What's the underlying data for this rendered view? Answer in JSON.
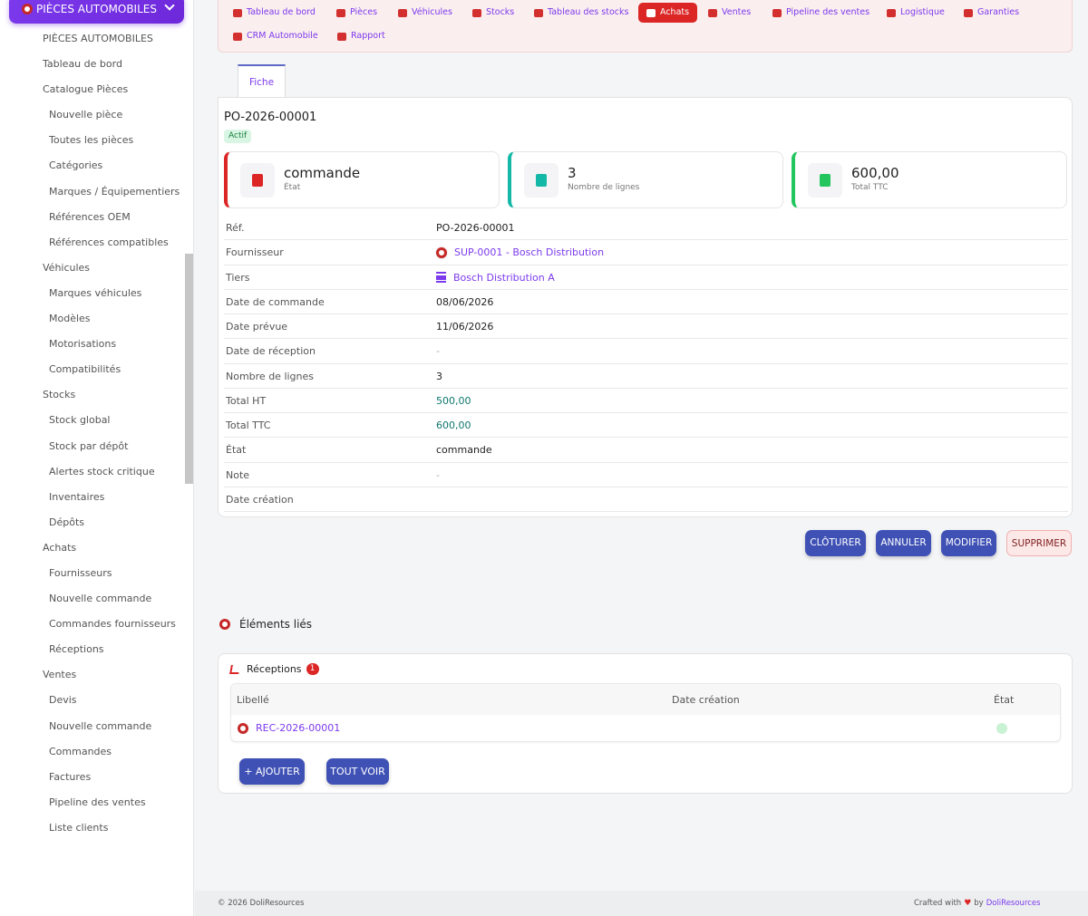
{
  "sidebar": {
    "brand": "PIÈCES AUTOMOBILES",
    "items": [
      {
        "label": "PIÈCES AUTOMOBILES",
        "level": 1
      },
      {
        "label": "Tableau de bord",
        "level": 1
      },
      {
        "label": "Catalogue Pièces",
        "level": 1
      },
      {
        "label": "Nouvelle pièce",
        "level": 2
      },
      {
        "label": "Toutes les pièces",
        "level": 2
      },
      {
        "label": "Catégories",
        "level": 2
      },
      {
        "label": "Marques / Équipementiers",
        "level": 2
      },
      {
        "label": "Références OEM",
        "level": 2
      },
      {
        "label": "Références compatibles",
        "level": 2
      },
      {
        "label": "Véhicules",
        "level": 1
      },
      {
        "label": "Marques véhicules",
        "level": 2
      },
      {
        "label": "Modèles",
        "level": 2
      },
      {
        "label": "Motorisations",
        "level": 2
      },
      {
        "label": "Compatibilités",
        "level": 2
      },
      {
        "label": "Stocks",
        "level": 1
      },
      {
        "label": "Stock global",
        "level": 2
      },
      {
        "label": "Stock par dépôt",
        "level": 2
      },
      {
        "label": "Alertes stock critique",
        "level": 2
      },
      {
        "label": "Inventaires",
        "level": 2
      },
      {
        "label": "Dépôts",
        "level": 2
      },
      {
        "label": "Achats",
        "level": 1
      },
      {
        "label": "Fournisseurs",
        "level": 2
      },
      {
        "label": "Nouvelle commande",
        "level": 2
      },
      {
        "label": "Commandes fournisseurs",
        "level": 2
      },
      {
        "label": "Réceptions",
        "level": 2
      },
      {
        "label": "Ventes",
        "level": 1
      },
      {
        "label": "Devis",
        "level": 2
      },
      {
        "label": "Nouvelle commande",
        "level": 2
      },
      {
        "label": "Commandes",
        "level": 2
      },
      {
        "label": "Factures",
        "level": 2
      },
      {
        "label": "Pipeline des ventes",
        "level": 2
      },
      {
        "label": "Liste clients",
        "level": 2
      }
    ]
  },
  "topnav": {
    "items": [
      {
        "label": "Tableau de bord",
        "icon": "dashboard-icon",
        "active": false
      },
      {
        "label": "Pièces",
        "icon": "gear-icon",
        "active": false
      },
      {
        "label": "Véhicules",
        "icon": "car-icon",
        "active": false
      },
      {
        "label": "Stocks",
        "icon": "boxes-icon",
        "active": false
      },
      {
        "label": "Tableau des stocks",
        "icon": "grid-icon",
        "active": false
      },
      {
        "label": "Achats",
        "icon": "document-icon",
        "active": true
      },
      {
        "label": "Ventes",
        "icon": "cart-icon",
        "active": false
      },
      {
        "label": "Pipeline des ventes",
        "icon": "list-icon",
        "active": false
      },
      {
        "label": "Logistique",
        "icon": "truck-icon",
        "active": false
      },
      {
        "label": "Garanties",
        "icon": "shield-icon",
        "active": false
      },
      {
        "label": "CRM Automobile",
        "icon": "user-plus-icon",
        "active": false
      },
      {
        "label": "Rapport",
        "icon": "pie-chart-icon",
        "active": false
      }
    ]
  },
  "tab": {
    "label": "Fiche"
  },
  "record": {
    "ref": "PO-2026-00001",
    "status_badge": "Actif"
  },
  "kpis": [
    {
      "value": "commande",
      "label": "État",
      "color": "#dc2626",
      "icon": "document-icon"
    },
    {
      "value": "3",
      "label": "Nombre de lignes",
      "color": "#14b8a6",
      "icon": "list-icon"
    },
    {
      "value": "600,00",
      "label": "Total TTC",
      "color": "#22c55e",
      "icon": "coins-icon"
    }
  ],
  "details": [
    {
      "label": "Réf.",
      "value": "PO-2026-00001",
      "type": "text"
    },
    {
      "label": "Fournisseur",
      "value": "SUP-0001 - Bosch Distribution",
      "type": "link",
      "icon": "gear-icon"
    },
    {
      "label": "Tiers",
      "value": "Bosch Distribution A",
      "type": "link",
      "icon": "bank-icon"
    },
    {
      "label": "Date de commande",
      "value": "08/06/2026",
      "type": "text"
    },
    {
      "label": "Date prévue",
      "value": "11/06/2026",
      "type": "text"
    },
    {
      "label": "Date de réception",
      "value": "-",
      "type": "dash"
    },
    {
      "label": "Nombre de lignes",
      "value": "3",
      "type": "text"
    },
    {
      "label": "Total HT",
      "value": "500,00",
      "type": "money"
    },
    {
      "label": "Total TTC",
      "value": "600,00",
      "type": "money"
    },
    {
      "label": "État",
      "value": "commande",
      "type": "text"
    },
    {
      "label": "Note",
      "value": "-",
      "type": "dash"
    },
    {
      "label": "Date création",
      "value": "",
      "type": "text"
    }
  ],
  "actions": {
    "close": "CLÔTURER",
    "cancel": "ANNULER",
    "edit": "MODIFIER",
    "delete": "SUPPRIMER"
  },
  "linked": {
    "title": "Éléments liés",
    "receptions": {
      "title": "Réceptions",
      "count": "1",
      "columns": {
        "label": "Libellé",
        "date": "Date création",
        "status": "État"
      },
      "rows": [
        {
          "label": "REC-2026-00001",
          "date": "",
          "status_color": "#c9f1d4"
        }
      ]
    },
    "add_button": "+ AJOUTER",
    "view_all_button": "TOUT VOIR"
  },
  "footer": {
    "copyright": "© 2026 DoliResources",
    "crafted": "Crafted with",
    "by": "by",
    "brand": "DoliResources"
  }
}
